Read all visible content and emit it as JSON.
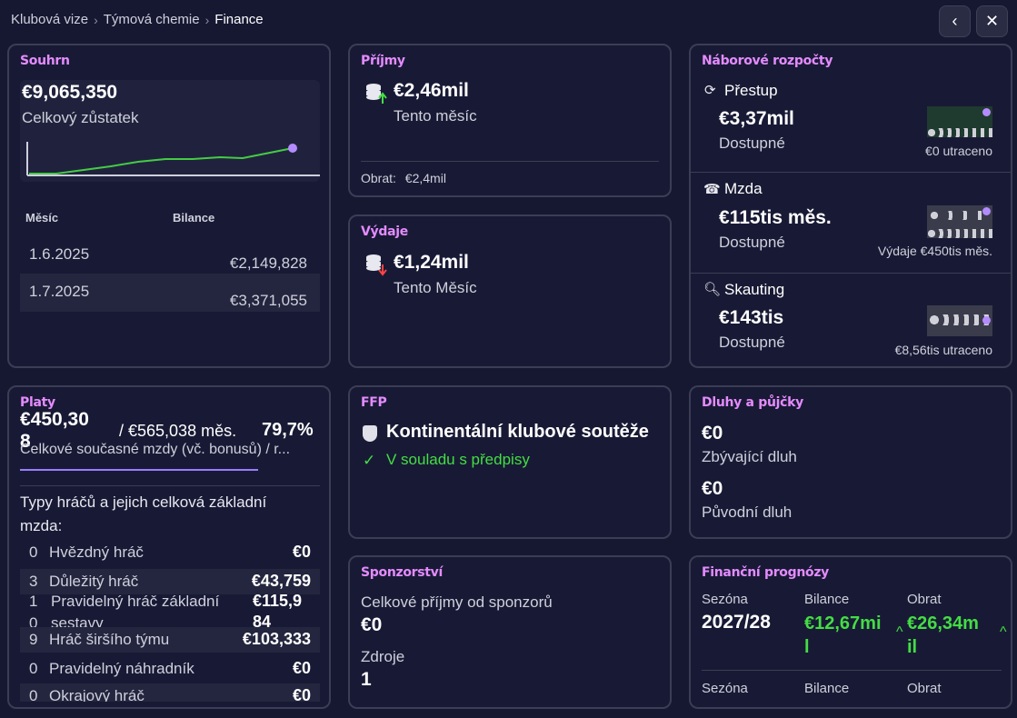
{
  "breadcrumb": [
    "Klubová vize",
    "Týmová chemie",
    "Finance"
  ],
  "summary": {
    "title": "Souhrn",
    "total": "€9,065,350",
    "total_label": "Celkový zůstatek",
    "col_month": "Měsíc",
    "col_balance": "Bilance",
    "rows": [
      {
        "month": "1.6.2025",
        "balance": "€2,149,828"
      },
      {
        "month": "1.7.2025",
        "balance": "€3,371,055"
      }
    ],
    "chart_data": {
      "type": "line",
      "x": [
        "1.6.2025",
        "1.7.2025"
      ],
      "values": [
        2149828,
        3371055
      ]
    }
  },
  "income": {
    "title": "Příjmy",
    "amount": "€2,46mil",
    "period": "Tento měsíc",
    "turnover_label": "Obrat:",
    "turnover_value": "€2,4mil"
  },
  "expenses": {
    "title": "Výdaje",
    "amount": "€1,24mil",
    "period": "Tento Měsíc"
  },
  "budgets": {
    "title": "Náborové rozpočty",
    "items": [
      {
        "name": "Přestup",
        "amount": "€3,37mil",
        "status": "Dostupné",
        "note": "€0 utraceno"
      },
      {
        "name": "Mzda",
        "amount": "€115tis měs.",
        "status": "Dostupné",
        "note": "Výdaje €450tis měs."
      },
      {
        "name": "Skauting",
        "amount": "€143tis",
        "status": "Dostupné",
        "note": "€8,56tis utraceno"
      }
    ]
  },
  "wages": {
    "title": "Platy",
    "current_a": "€450,30",
    "current_b": "8",
    "limit": "/ €565,038 měs.",
    "percent": "79,7%",
    "desc": "Celkové současné mzdy (vč. bonusů) / r...",
    "percent_value": 79.7,
    "types_heading": "Typy hráčů a jejich celková základní mzda:",
    "types": [
      {
        "count": "0",
        "label": "Hvězdný hráč",
        "value": "€0"
      },
      {
        "count": "3",
        "label": "Důležitý hráč",
        "value": "€43,759"
      },
      {
        "count": "1",
        "label": "Pravidelný hráč základní",
        "value": "€115,9"
      },
      {
        "count": "0",
        "label": "sestavy",
        "value": "84"
      },
      {
        "count": "9",
        "label": "Hráč širšího týmu",
        "value": "€103,333"
      },
      {
        "count": "0",
        "label": "Pravidelný náhradník",
        "value": "€0"
      },
      {
        "count": "0",
        "label": "Okrajový hráč",
        "value": "€0"
      }
    ]
  },
  "ffp": {
    "title": "FFP",
    "competition": "Kontinentální klubové soutěže",
    "status": "V souladu s předpisy"
  },
  "debts": {
    "title": "Dluhy a půjčky",
    "remaining": "€0",
    "remaining_label": "Zbývající dluh",
    "original": "€0",
    "original_label": "Původní dluh"
  },
  "sponsorship": {
    "title": "Sponzorství",
    "income_label": "Celkové příjmy od sponzorů",
    "income_value": "€0",
    "sources_label": "Zdroje",
    "sources_value": "1"
  },
  "forecast": {
    "title": "Finanční prognózy",
    "season_label": "Sezóna",
    "balance_label": "Bilance",
    "turnover_label": "Obrat",
    "rows": [
      {
        "season": "2027/28",
        "balance_a": "€12,67mi",
        "balance_b": "l",
        "turnover_a": "€26,34m",
        "turnover_b": "il"
      }
    ]
  },
  "colors": {
    "accent": "#e58bff",
    "positive": "#44dd44",
    "negative": "#ff4444",
    "chart_line": "#44cc44",
    "chart_dot": "#b48bff"
  }
}
